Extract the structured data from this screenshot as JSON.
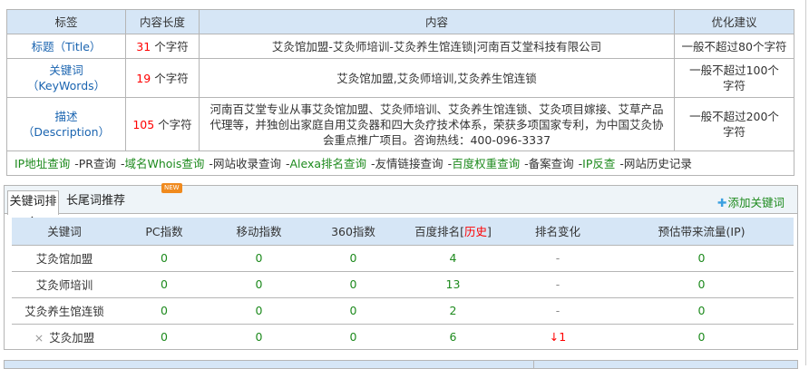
{
  "meta_table": {
    "headers": [
      "标签",
      "内容长度",
      "内容",
      "优化建议"
    ],
    "rows": [
      {
        "label": "标题（Title）",
        "len": "31",
        "unit": "个字符",
        "content": "艾灸馆加盟-艾灸师培训-艾灸养生馆连锁|河南百艾堂科技有限公司",
        "advice": "一般不超过80个字符"
      },
      {
        "label": "关键词（KeyWords）",
        "len": "19",
        "unit": "个字符",
        "content": "艾灸馆加盟,艾灸师培训,艾灸养生馆连锁",
        "advice": "一般不超过100个字符"
      },
      {
        "label": "描述（Description）",
        "len": "105",
        "unit": "个字符",
        "content": "河南百艾堂专业从事艾灸馆加盟、艾灸师培训、艾灸养生馆连锁、艾灸项目嫁接、艾草产品代理等，并独创出家庭自用艾灸器和四大灸疗技术体系，荣获多项国家专利，为中国艾灸协会重点推广项目。咨询热线：400-096-3337",
        "advice": "一般不超过200个字符"
      }
    ],
    "links": [
      "IP地址查询",
      "PR查询",
      "域名Whois查询",
      "网站收录查询",
      "Alexa排名查询",
      "友情链接查询",
      "百度权重查询",
      "备案查询",
      "IP反查",
      "网站历史记录"
    ],
    "separator": "-"
  },
  "tabs": {
    "items": [
      "关键词排名",
      "长尾词推荐"
    ],
    "new_badge": "NEW",
    "add_keyword": "添加关键词",
    "add_icon": "plus-icon"
  },
  "rank_table": {
    "headers": [
      "关键词",
      "PC指数",
      "移动指数",
      "360指数",
      "百度排名",
      "历史",
      "排名变化",
      "预估带来流量(IP)"
    ],
    "rows": [
      [
        "艾灸馆加盟",
        "0",
        "0",
        "0",
        "4",
        "-",
        "0"
      ],
      [
        "艾灸师培训",
        "0",
        "0",
        "0",
        "13",
        "-",
        "0"
      ],
      [
        "艾灸养生馆连锁",
        "0",
        "0",
        "0",
        "2",
        "-",
        "0"
      ],
      [
        "艾灸加盟",
        "0",
        "0",
        "0",
        "6",
        "↓1",
        "0"
      ]
    ],
    "delete_mark": "×"
  },
  "colors": {
    "header_bg": "#d6e6f6",
    "link_green": "#1d8a1d",
    "label_blue": "#1a64b0",
    "alert_red": "#ff0000"
  }
}
